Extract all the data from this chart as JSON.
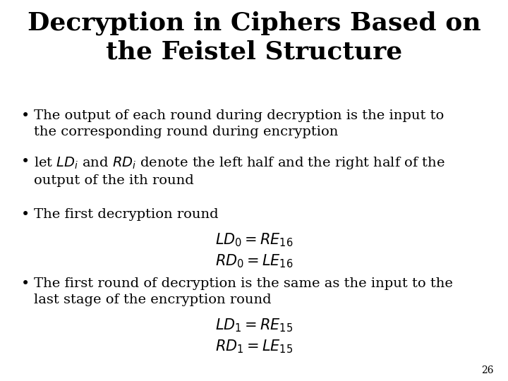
{
  "title_line1": "Decryption in Ciphers Based on",
  "title_line2": "the Feistel Structure",
  "background_color": "#ffffff",
  "title_fontsize": 26,
  "body_fontsize": 14,
  "math_fontsize": 14,
  "page_number": "26",
  "figwidth": 7.2,
  "figheight": 5.4,
  "dpi": 100
}
